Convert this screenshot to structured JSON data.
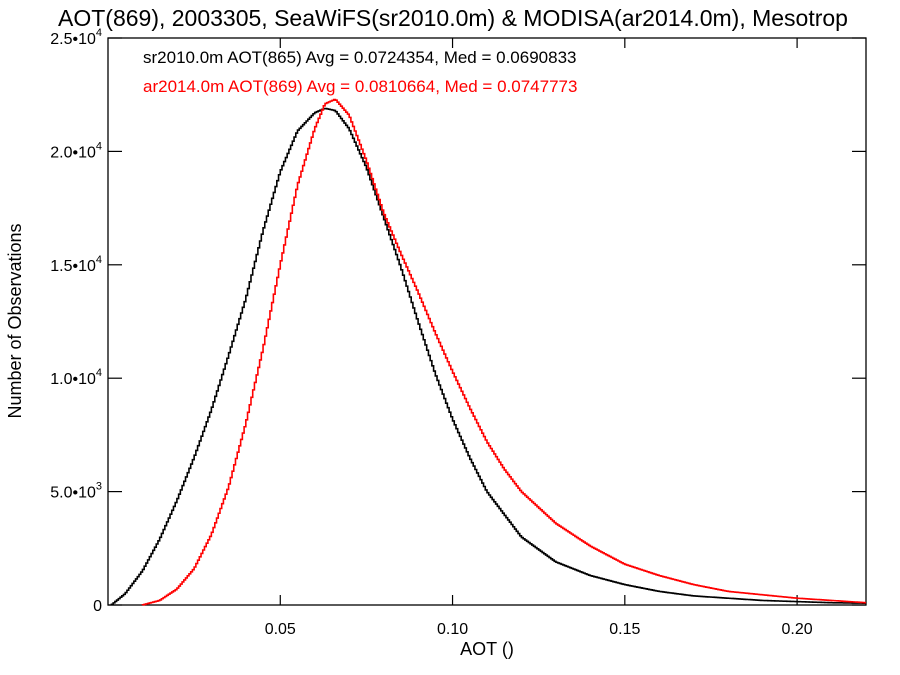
{
  "chart_data": {
    "type": "line",
    "step": true,
    "title": "AOT(869), 2003305, SeaWiFS(sr2010.0m) & MODISA(ar2014.0m), Mesotrop",
    "xlabel": "AOT ()",
    "ylabel": "Number of Observations",
    "xlim": [
      0.0,
      0.22
    ],
    "ylim": [
      0,
      25000
    ],
    "grid": false,
    "legend_position": "top-left",
    "x_ticks": [
      {
        "value": 0.05,
        "label": "0.05"
      },
      {
        "value": 0.1,
        "label": "0.10"
      },
      {
        "value": 0.15,
        "label": "0.15"
      },
      {
        "value": 0.2,
        "label": "0.20"
      }
    ],
    "y_ticks": [
      {
        "value": 0,
        "label": "0",
        "mantissa": "",
        "exponent": ""
      },
      {
        "value": 5000,
        "label": "5.0•10^3",
        "mantissa": "5.0•10",
        "exponent": "3"
      },
      {
        "value": 10000,
        "label": "1.0•10^4",
        "mantissa": "1.0•10",
        "exponent": "4"
      },
      {
        "value": 15000,
        "label": "1.5•10^4",
        "mantissa": "1.5•10",
        "exponent": "4"
      },
      {
        "value": 20000,
        "label": "2.0•10^4",
        "mantissa": "2.0•10",
        "exponent": "4"
      },
      {
        "value": 25000,
        "label": "2.5•10^4",
        "mantissa": "2.5•10",
        "exponent": "4"
      }
    ],
    "series": [
      {
        "legend": "sr2010.0m AOT(865) Avg = 0.0724354, Med = 0.0690833",
        "color": "#000000",
        "x": [
          0.001,
          0.005,
          0.01,
          0.015,
          0.02,
          0.025,
          0.03,
          0.035,
          0.04,
          0.045,
          0.05,
          0.055,
          0.06,
          0.063,
          0.066,
          0.07,
          0.075,
          0.08,
          0.085,
          0.09,
          0.095,
          0.1,
          0.105,
          0.11,
          0.12,
          0.13,
          0.14,
          0.15,
          0.16,
          0.17,
          0.18,
          0.19,
          0.2,
          0.21,
          0.22
        ],
        "y": [
          0,
          500,
          1500,
          2900,
          4600,
          6500,
          8600,
          11000,
          13500,
          16500,
          19100,
          20900,
          21700,
          21900,
          21800,
          21000,
          19300,
          17100,
          14900,
          12500,
          10200,
          8200,
          6500,
          5000,
          3000,
          1900,
          1300,
          900,
          600,
          400,
          300,
          200,
          150,
          100,
          80
        ]
      },
      {
        "legend": "ar2014.0m AOT(869) Avg = 0.0810664, Med = 0.0747773",
        "color": "#ff0000",
        "x": [
          0.01,
          0.015,
          0.02,
          0.025,
          0.03,
          0.035,
          0.04,
          0.045,
          0.05,
          0.055,
          0.06,
          0.063,
          0.066,
          0.07,
          0.075,
          0.08,
          0.085,
          0.09,
          0.095,
          0.1,
          0.105,
          0.11,
          0.115,
          0.12,
          0.13,
          0.14,
          0.15,
          0.16,
          0.17,
          0.18,
          0.19,
          0.2,
          0.21,
          0.22
        ],
        "y": [
          0,
          200,
          700,
          1600,
          3100,
          5200,
          8000,
          11300,
          15000,
          18500,
          21000,
          22100,
          22300,
          21600,
          19600,
          17300,
          15500,
          13800,
          12000,
          10300,
          8700,
          7200,
          6000,
          5000,
          3600,
          2600,
          1800,
          1300,
          900,
          600,
          450,
          300,
          200,
          100
        ]
      }
    ]
  }
}
